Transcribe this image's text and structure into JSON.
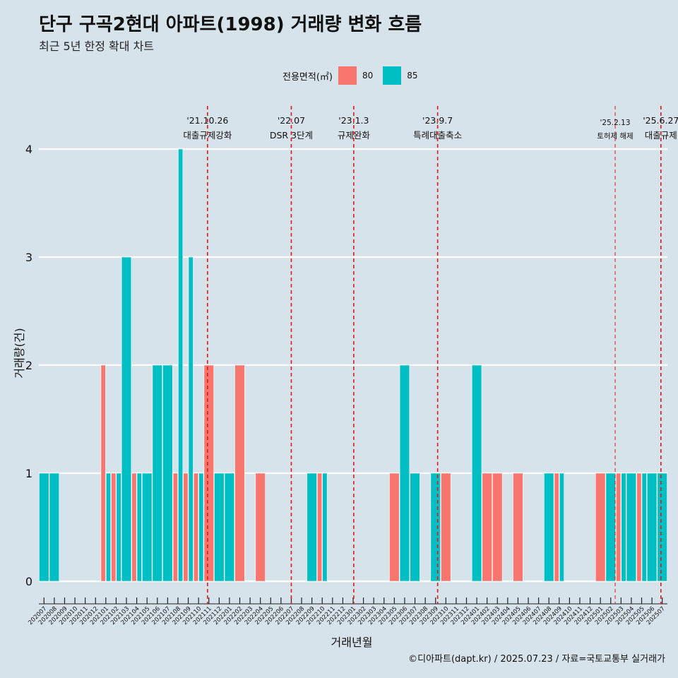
{
  "title": "단구 구곡2현대 아파트(1998) 거래량 변화 흐름",
  "subtitle": "최근 5년 한정 확대 차트",
  "caption": "©디아파트(dapt.kr) / 2025.07.23 / 자료=국토교통부 실거래가",
  "legend": {
    "title": "전용면적(㎡)",
    "items": [
      {
        "label": "80",
        "color": "#f8766d"
      },
      {
        "label": "85",
        "color": "#00bfc4"
      }
    ]
  },
  "chart_data": {
    "type": "bar",
    "stacked": false,
    "xlabel": "거래년월",
    "ylabel": "거래량(건)",
    "ylim": [
      0,
      4
    ],
    "yticks": [
      0,
      1,
      2,
      3,
      4
    ],
    "grid": true,
    "categories": [
      "202007",
      "202008",
      "202009",
      "202010",
      "202011",
      "202012",
      "202101",
      "202102",
      "202103",
      "202104",
      "202105",
      "202106",
      "202107",
      "202108",
      "202109",
      "202110",
      "202111",
      "202112",
      "202201",
      "202202",
      "202203",
      "202204",
      "202205",
      "202206",
      "202207",
      "202208",
      "202209",
      "202210",
      "202211",
      "202212",
      "202301",
      "202302",
      "202303",
      "202304",
      "202305",
      "202306",
      "202307",
      "202308",
      "202309",
      "202310",
      "202311",
      "202312",
      "202401",
      "202402",
      "202403",
      "202404",
      "202405",
      "202406",
      "202407",
      "202408",
      "202409",
      "202410",
      "202411",
      "202412",
      "202501",
      "202502",
      "202503",
      "202504",
      "202505",
      "202506",
      "202507"
    ],
    "series": [
      {
        "name": "80",
        "color": "#f8766d",
        "values": [
          0,
          0,
          0,
          0,
          0,
          0,
          2,
          1,
          0,
          1,
          0,
          0,
          0,
          1,
          1,
          1,
          2,
          0,
          0,
          2,
          0,
          1,
          0,
          0,
          0,
          0,
          0,
          1,
          0,
          0,
          0,
          0,
          0,
          0,
          1,
          0,
          0,
          0,
          0,
          1,
          0,
          0,
          0,
          1,
          1,
          0,
          1,
          0,
          0,
          0,
          1,
          0,
          0,
          0,
          1,
          0,
          1,
          0,
          1,
          0,
          0
        ]
      },
      {
        "name": "85",
        "color": "#00bfc4",
        "values": [
          1,
          1,
          0,
          0,
          0,
          0,
          1,
          1,
          3,
          1,
          1,
          2,
          2,
          4,
          3,
          1,
          0,
          1,
          1,
          0,
          0,
          0,
          0,
          0,
          0,
          0,
          1,
          1,
          0,
          0,
          0,
          0,
          0,
          0,
          0,
          2,
          1,
          0,
          1,
          0,
          0,
          0,
          2,
          0,
          0,
          0,
          0,
          0,
          0,
          1,
          1,
          0,
          0,
          0,
          0,
          1,
          1,
          1,
          1,
          1,
          1
        ]
      }
    ],
    "annotations": [
      {
        "month": "202110",
        "offset": 0.87,
        "date": "'21.10.26",
        "label": "대출규제강화",
        "small": false
      },
      {
        "month": "202207",
        "offset": 0.0,
        "date": "'22.07",
        "label": "DSR 3단계",
        "small": false
      },
      {
        "month": "202301",
        "offset": 0.06,
        "date": "'23.1.3",
        "label": "규제완화",
        "small": false
      },
      {
        "month": "202309",
        "offset": 0.2,
        "date": "'23.9.7",
        "label": "특례대출축소",
        "small": false
      },
      {
        "month": "202502",
        "offset": 0.43,
        "date": "'25.2.13",
        "label": "토허제 해제",
        "small": true
      },
      {
        "month": "202506",
        "offset": 0.87,
        "date": "'25.6.27",
        "label": "대출규제",
        "small": false
      }
    ]
  }
}
